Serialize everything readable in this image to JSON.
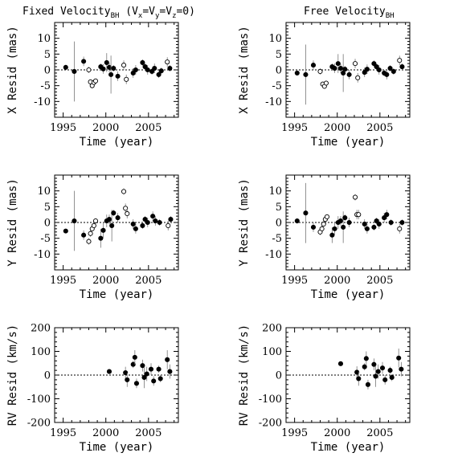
{
  "column_titles": [
    {
      "prefix": "Fixed Velocity",
      "sub": "BH",
      "suffix": " (V",
      "extra": "x",
      "mid1": "=V",
      "extra2": "y",
      "mid2": "=V",
      "extra3": "z",
      "end": "=0)"
    },
    {
      "prefix": "Free Velocity",
      "sub": "BH",
      "suffix": "",
      "extra": "",
      "mid1": "",
      "extra2": "",
      "mid2": "",
      "extra3": "",
      "end": ""
    }
  ],
  "chart_data": [
    {
      "id": "x-fixed",
      "type": "scatter",
      "title": "",
      "xlabel": "Time (year)",
      "ylabel": "X Resid (mas)",
      "xlim": [
        1994,
        2008.5
      ],
      "ylim": [
        -15,
        15
      ],
      "xticks": [
        1995,
        2000,
        2005
      ],
      "yticks": [
        -10,
        -5,
        0,
        5,
        10
      ],
      "zero_line": true,
      "points": [
        {
          "x": 1995.3,
          "y": 0.8,
          "e": 0.5,
          "filled": true
        },
        {
          "x": 1996.3,
          "y": -0.5,
          "e": 9.5,
          "filled": true
        },
        {
          "x": 1997.4,
          "y": 2.7,
          "e": 1.5,
          "filled": true
        },
        {
          "x": 1998.0,
          "y": 0.0,
          "e": 1.0,
          "filled": false
        },
        {
          "x": 1998.2,
          "y": -3.8,
          "e": 0.8,
          "filled": false
        },
        {
          "x": 1998.4,
          "y": -5.0,
          "e": 0.8,
          "filled": false
        },
        {
          "x": 1998.6,
          "y": -4.0,
          "e": 0.8,
          "filled": false
        },
        {
          "x": 1998.8,
          "y": -3.5,
          "e": 0.8,
          "filled": false
        },
        {
          "x": 1999.4,
          "y": 1.0,
          "e": 1.0,
          "filled": true
        },
        {
          "x": 1999.7,
          "y": 0.3,
          "e": 1.5,
          "filled": true
        },
        {
          "x": 2000.1,
          "y": 2.3,
          "e": 3.0,
          "filled": true
        },
        {
          "x": 2000.4,
          "y": 0.8,
          "e": 1.5,
          "filled": true
        },
        {
          "x": 2000.6,
          "y": -1.5,
          "e": 6.0,
          "filled": true
        },
        {
          "x": 2000.9,
          "y": 0.5,
          "e": 1.0,
          "filled": true
        },
        {
          "x": 2001.4,
          "y": -2.0,
          "e": 1.5,
          "filled": true
        },
        {
          "x": 2002.1,
          "y": 1.5,
          "e": 1.5,
          "filled": false
        },
        {
          "x": 2002.4,
          "y": -3.0,
          "e": 1.5,
          "filled": false
        },
        {
          "x": 2003.2,
          "y": -1.0,
          "e": 1.5,
          "filled": true
        },
        {
          "x": 2003.5,
          "y": 0.0,
          "e": 1.5,
          "filled": true
        },
        {
          "x": 2004.3,
          "y": 2.3,
          "e": 1.0,
          "filled": true
        },
        {
          "x": 2004.6,
          "y": 1.0,
          "e": 1.0,
          "filled": true
        },
        {
          "x": 2004.9,
          "y": 0.0,
          "e": 1.5,
          "filled": true
        },
        {
          "x": 2005.4,
          "y": -0.5,
          "e": 1.0,
          "filled": true
        },
        {
          "x": 2005.7,
          "y": 0.5,
          "e": 1.5,
          "filled": true
        },
        {
          "x": 2006.2,
          "y": -1.5,
          "e": 1.0,
          "filled": true
        },
        {
          "x": 2006.5,
          "y": -0.3,
          "e": 1.0,
          "filled": true
        },
        {
          "x": 2007.2,
          "y": 2.5,
          "e": 1.5,
          "filled": false
        },
        {
          "x": 2007.5,
          "y": 0.5,
          "e": 1.0,
          "filled": true
        }
      ]
    },
    {
      "id": "x-free",
      "type": "scatter",
      "title": "",
      "xlabel": "Time (year)",
      "ylabel": "X Resid (mas)",
      "xlim": [
        1994,
        2008.5
      ],
      "ylim": [
        -15,
        15
      ],
      "xticks": [
        1995,
        2000,
        2005
      ],
      "yticks": [
        -10,
        -5,
        0,
        5,
        10
      ],
      "zero_line": true,
      "points": [
        {
          "x": 1995.3,
          "y": -1.0,
          "e": 0.5,
          "filled": true
        },
        {
          "x": 1996.3,
          "y": -1.5,
          "e": 9.5,
          "filled": true
        },
        {
          "x": 1997.2,
          "y": 1.5,
          "e": 1.5,
          "filled": true
        },
        {
          "x": 1998.0,
          "y": -0.5,
          "e": 1.0,
          "filled": false
        },
        {
          "x": 1998.3,
          "y": -4.5,
          "e": 0.8,
          "filled": false
        },
        {
          "x": 1998.5,
          "y": -5.2,
          "e": 0.8,
          "filled": false
        },
        {
          "x": 1998.7,
          "y": -4.2,
          "e": 0.8,
          "filled": false
        },
        {
          "x": 1999.4,
          "y": 1.0,
          "e": 1.0,
          "filled": true
        },
        {
          "x": 1999.7,
          "y": 0.5,
          "e": 1.5,
          "filled": true
        },
        {
          "x": 2000.1,
          "y": 2.0,
          "e": 3.0,
          "filled": true
        },
        {
          "x": 2000.4,
          "y": 0.5,
          "e": 1.5,
          "filled": true
        },
        {
          "x": 2000.7,
          "y": -1.0,
          "e": 6.0,
          "filled": true
        },
        {
          "x": 2000.9,
          "y": 0.2,
          "e": 1.0,
          "filled": true
        },
        {
          "x": 2001.4,
          "y": -1.5,
          "e": 1.5,
          "filled": true
        },
        {
          "x": 2002.1,
          "y": 2.0,
          "e": 1.5,
          "filled": false
        },
        {
          "x": 2002.4,
          "y": -2.5,
          "e": 1.5,
          "filled": false
        },
        {
          "x": 2003.2,
          "y": -0.8,
          "e": 1.5,
          "filled": true
        },
        {
          "x": 2003.5,
          "y": 0.2,
          "e": 1.5,
          "filled": true
        },
        {
          "x": 2004.3,
          "y": 2.0,
          "e": 1.0,
          "filled": true
        },
        {
          "x": 2004.6,
          "y": 1.0,
          "e": 1.0,
          "filled": true
        },
        {
          "x": 2004.9,
          "y": 0.0,
          "e": 1.5,
          "filled": true
        },
        {
          "x": 2005.5,
          "y": -1.0,
          "e": 1.0,
          "filled": true
        },
        {
          "x": 2005.8,
          "y": -1.5,
          "e": 1.5,
          "filled": true
        },
        {
          "x": 2006.2,
          "y": 0.5,
          "e": 1.0,
          "filled": true
        },
        {
          "x": 2006.6,
          "y": -0.5,
          "e": 1.0,
          "filled": true
        },
        {
          "x": 2007.3,
          "y": 3.0,
          "e": 1.5,
          "filled": false
        },
        {
          "x": 2007.6,
          "y": 1.0,
          "e": 1.0,
          "filled": true
        }
      ]
    },
    {
      "id": "y-fixed",
      "type": "scatter",
      "title": "",
      "xlabel": "Time (year)",
      "ylabel": "Y Resid (mas)",
      "xlim": [
        1994,
        2008.5
      ],
      "ylim": [
        -15,
        15
      ],
      "xticks": [
        1995,
        2000,
        2005
      ],
      "yticks": [
        -10,
        -5,
        0,
        5,
        10
      ],
      "zero_line": true,
      "points": [
        {
          "x": 1995.3,
          "y": -2.7,
          "e": 0.5,
          "filled": true
        },
        {
          "x": 1996.3,
          "y": 0.5,
          "e": 9.5,
          "filled": true
        },
        {
          "x": 1997.4,
          "y": -4.0,
          "e": 1.5,
          "filled": true
        },
        {
          "x": 1998.0,
          "y": -6.0,
          "e": 1.0,
          "filled": false
        },
        {
          "x": 1998.2,
          "y": -3.5,
          "e": 1.0,
          "filled": false
        },
        {
          "x": 1998.4,
          "y": -2.0,
          "e": 0.8,
          "filled": false
        },
        {
          "x": 1998.6,
          "y": -1.0,
          "e": 0.8,
          "filled": false
        },
        {
          "x": 1998.8,
          "y": 0.5,
          "e": 0.8,
          "filled": false
        },
        {
          "x": 1999.4,
          "y": -5.0,
          "e": 3.0,
          "filled": true
        },
        {
          "x": 1999.7,
          "y": -2.5,
          "e": 2.5,
          "filled": true
        },
        {
          "x": 2000.1,
          "y": 0.5,
          "e": 2.0,
          "filled": true
        },
        {
          "x": 2000.4,
          "y": 1.0,
          "e": 1.5,
          "filled": true
        },
        {
          "x": 2000.7,
          "y": -1.0,
          "e": 5.0,
          "filled": true
        },
        {
          "x": 2000.9,
          "y": 3.0,
          "e": 1.0,
          "filled": true
        },
        {
          "x": 2001.4,
          "y": 1.5,
          "e": 1.5,
          "filled": true
        },
        {
          "x": 2002.1,
          "y": 9.8,
          "e": 1.0,
          "filled": false
        },
        {
          "x": 2002.3,
          "y": 4.5,
          "e": 1.5,
          "filled": false
        },
        {
          "x": 2002.5,
          "y": 2.8,
          "e": 1.5,
          "filled": false
        },
        {
          "x": 2003.2,
          "y": -0.5,
          "e": 1.5,
          "filled": true
        },
        {
          "x": 2003.5,
          "y": -2.0,
          "e": 1.5,
          "filled": true
        },
        {
          "x": 2004.3,
          "y": -1.0,
          "e": 1.0,
          "filled": true
        },
        {
          "x": 2004.6,
          "y": 1.0,
          "e": 1.0,
          "filled": true
        },
        {
          "x": 2004.9,
          "y": 0.0,
          "e": 1.5,
          "filled": true
        },
        {
          "x": 2005.5,
          "y": 2.0,
          "e": 1.5,
          "filled": true
        },
        {
          "x": 2005.8,
          "y": 0.5,
          "e": 1.5,
          "filled": true
        },
        {
          "x": 2006.3,
          "y": 0.0,
          "e": 1.0,
          "filled": true
        },
        {
          "x": 2007.3,
          "y": -1.0,
          "e": 1.5,
          "filled": false
        },
        {
          "x": 2007.6,
          "y": 1.0,
          "e": 1.0,
          "filled": true
        }
      ]
    },
    {
      "id": "y-free",
      "type": "scatter",
      "title": "",
      "xlabel": "Time (year)",
      "ylabel": "Y Resid (mas)",
      "xlim": [
        1994,
        2008.5
      ],
      "ylim": [
        -15,
        15
      ],
      "xticks": [
        1995,
        2000,
        2005
      ],
      "yticks": [
        -10,
        -5,
        0,
        5,
        10
      ],
      "zero_line": true,
      "points": [
        {
          "x": 1995.3,
          "y": 0.5,
          "e": 0.8,
          "filled": true
        },
        {
          "x": 1996.3,
          "y": 3.0,
          "e": 9.5,
          "filled": true
        },
        {
          "x": 1997.2,
          "y": -1.5,
          "e": 1.5,
          "filled": true
        },
        {
          "x": 1998.0,
          "y": -3.0,
          "e": 1.0,
          "filled": false
        },
        {
          "x": 1998.2,
          "y": -2.0,
          "e": 1.0,
          "filled": false
        },
        {
          "x": 1998.4,
          "y": -0.5,
          "e": 0.8,
          "filled": false
        },
        {
          "x": 1998.6,
          "y": 1.0,
          "e": 0.8,
          "filled": false
        },
        {
          "x": 1998.8,
          "y": 1.8,
          "e": 0.8,
          "filled": false
        },
        {
          "x": 1999.4,
          "y": -4.0,
          "e": 2.5,
          "filled": true
        },
        {
          "x": 1999.7,
          "y": -2.0,
          "e": 2.0,
          "filled": true
        },
        {
          "x": 2000.1,
          "y": 0.0,
          "e": 2.0,
          "filled": true
        },
        {
          "x": 2000.4,
          "y": 0.5,
          "e": 1.5,
          "filled": true
        },
        {
          "x": 2000.7,
          "y": -1.5,
          "e": 5.0,
          "filled": true
        },
        {
          "x": 2000.9,
          "y": 1.5,
          "e": 1.0,
          "filled": true
        },
        {
          "x": 2001.4,
          "y": 0.0,
          "e": 1.5,
          "filled": true
        },
        {
          "x": 2002.1,
          "y": 8.0,
          "e": 1.0,
          "filled": false
        },
        {
          "x": 2002.3,
          "y": 2.5,
          "e": 1.5,
          "filled": false
        },
        {
          "x": 2002.5,
          "y": 2.5,
          "e": 1.5,
          "filled": false
        },
        {
          "x": 2003.2,
          "y": -0.5,
          "e": 1.5,
          "filled": true
        },
        {
          "x": 2003.5,
          "y": -2.0,
          "e": 1.5,
          "filled": true
        },
        {
          "x": 2004.3,
          "y": -1.5,
          "e": 1.0,
          "filled": true
        },
        {
          "x": 2004.6,
          "y": 0.5,
          "e": 1.0,
          "filled": true
        },
        {
          "x": 2004.9,
          "y": -0.5,
          "e": 1.5,
          "filled": true
        },
        {
          "x": 2005.5,
          "y": 1.5,
          "e": 1.5,
          "filled": true
        },
        {
          "x": 2005.8,
          "y": 2.5,
          "e": 1.5,
          "filled": true
        },
        {
          "x": 2006.3,
          "y": 0.0,
          "e": 1.0,
          "filled": true
        },
        {
          "x": 2007.3,
          "y": -2.0,
          "e": 1.5,
          "filled": false
        },
        {
          "x": 2007.6,
          "y": 0.0,
          "e": 1.0,
          "filled": true
        }
      ]
    },
    {
      "id": "rv-fixed",
      "type": "scatter",
      "title": "",
      "xlabel": "Time (year)",
      "ylabel": "RV Resid (km/s)",
      "xlim": [
        1994,
        2008.5
      ],
      "ylim": [
        -200,
        200
      ],
      "xticks": [
        1995,
        2000,
        2005
      ],
      "yticks": [
        -200,
        -100,
        0,
        100,
        200
      ],
      "zero_line": true,
      "points": [
        {
          "x": 2000.4,
          "y": 15,
          "e": 5,
          "filled": true
        },
        {
          "x": 2002.3,
          "y": 10,
          "e": 25,
          "filled": true
        },
        {
          "x": 2002.5,
          "y": -20,
          "e": 30,
          "filled": true
        },
        {
          "x": 2003.2,
          "y": 45,
          "e": 15,
          "filled": true
        },
        {
          "x": 2003.4,
          "y": 75,
          "e": 30,
          "filled": true
        },
        {
          "x": 2003.6,
          "y": -35,
          "e": 20,
          "filled": true
        },
        {
          "x": 2004.3,
          "y": 40,
          "e": 25,
          "filled": true
        },
        {
          "x": 2004.5,
          "y": -10,
          "e": 45,
          "filled": true
        },
        {
          "x": 2004.8,
          "y": 5,
          "e": 30,
          "filled": true
        },
        {
          "x": 2005.3,
          "y": 25,
          "e": 25,
          "filled": true
        },
        {
          "x": 2005.6,
          "y": -25,
          "e": 20,
          "filled": true
        },
        {
          "x": 2006.2,
          "y": 25,
          "e": 15,
          "filled": true
        },
        {
          "x": 2006.4,
          "y": -15,
          "e": 15,
          "filled": true
        },
        {
          "x": 2007.2,
          "y": 65,
          "e": 40,
          "filled": true
        },
        {
          "x": 2007.5,
          "y": 15,
          "e": 30,
          "filled": true
        }
      ]
    },
    {
      "id": "rv-free",
      "type": "scatter",
      "title": "",
      "xlabel": "Time (year)",
      "ylabel": "RV Resid (km/s)",
      "xlim": [
        1994,
        2008.5
      ],
      "ylim": [
        -200,
        200
      ],
      "xticks": [
        1995,
        2000,
        2005
      ],
      "yticks": [
        -200,
        -100,
        0,
        100,
        200
      ],
      "zero_line": true,
      "points": [
        {
          "x": 2000.4,
          "y": 48,
          "e": 5,
          "filled": true
        },
        {
          "x": 2002.3,
          "y": 12,
          "e": 25,
          "filled": true
        },
        {
          "x": 2002.5,
          "y": -15,
          "e": 30,
          "filled": true
        },
        {
          "x": 2003.2,
          "y": 35,
          "e": 15,
          "filled": true
        },
        {
          "x": 2003.4,
          "y": 70,
          "e": 30,
          "filled": true
        },
        {
          "x": 2003.6,
          "y": -40,
          "e": 20,
          "filled": true
        },
        {
          "x": 2004.3,
          "y": 45,
          "e": 25,
          "filled": true
        },
        {
          "x": 2004.5,
          "y": -5,
          "e": 45,
          "filled": true
        },
        {
          "x": 2004.8,
          "y": 15,
          "e": 30,
          "filled": true
        },
        {
          "x": 2005.3,
          "y": 30,
          "e": 25,
          "filled": true
        },
        {
          "x": 2005.6,
          "y": -20,
          "e": 20,
          "filled": true
        },
        {
          "x": 2006.2,
          "y": 20,
          "e": 15,
          "filled": true
        },
        {
          "x": 2006.4,
          "y": -10,
          "e": 15,
          "filled": true
        },
        {
          "x": 2007.2,
          "y": 72,
          "e": 40,
          "filled": true
        },
        {
          "x": 2007.5,
          "y": 25,
          "e": 30,
          "filled": true
        }
      ]
    }
  ]
}
